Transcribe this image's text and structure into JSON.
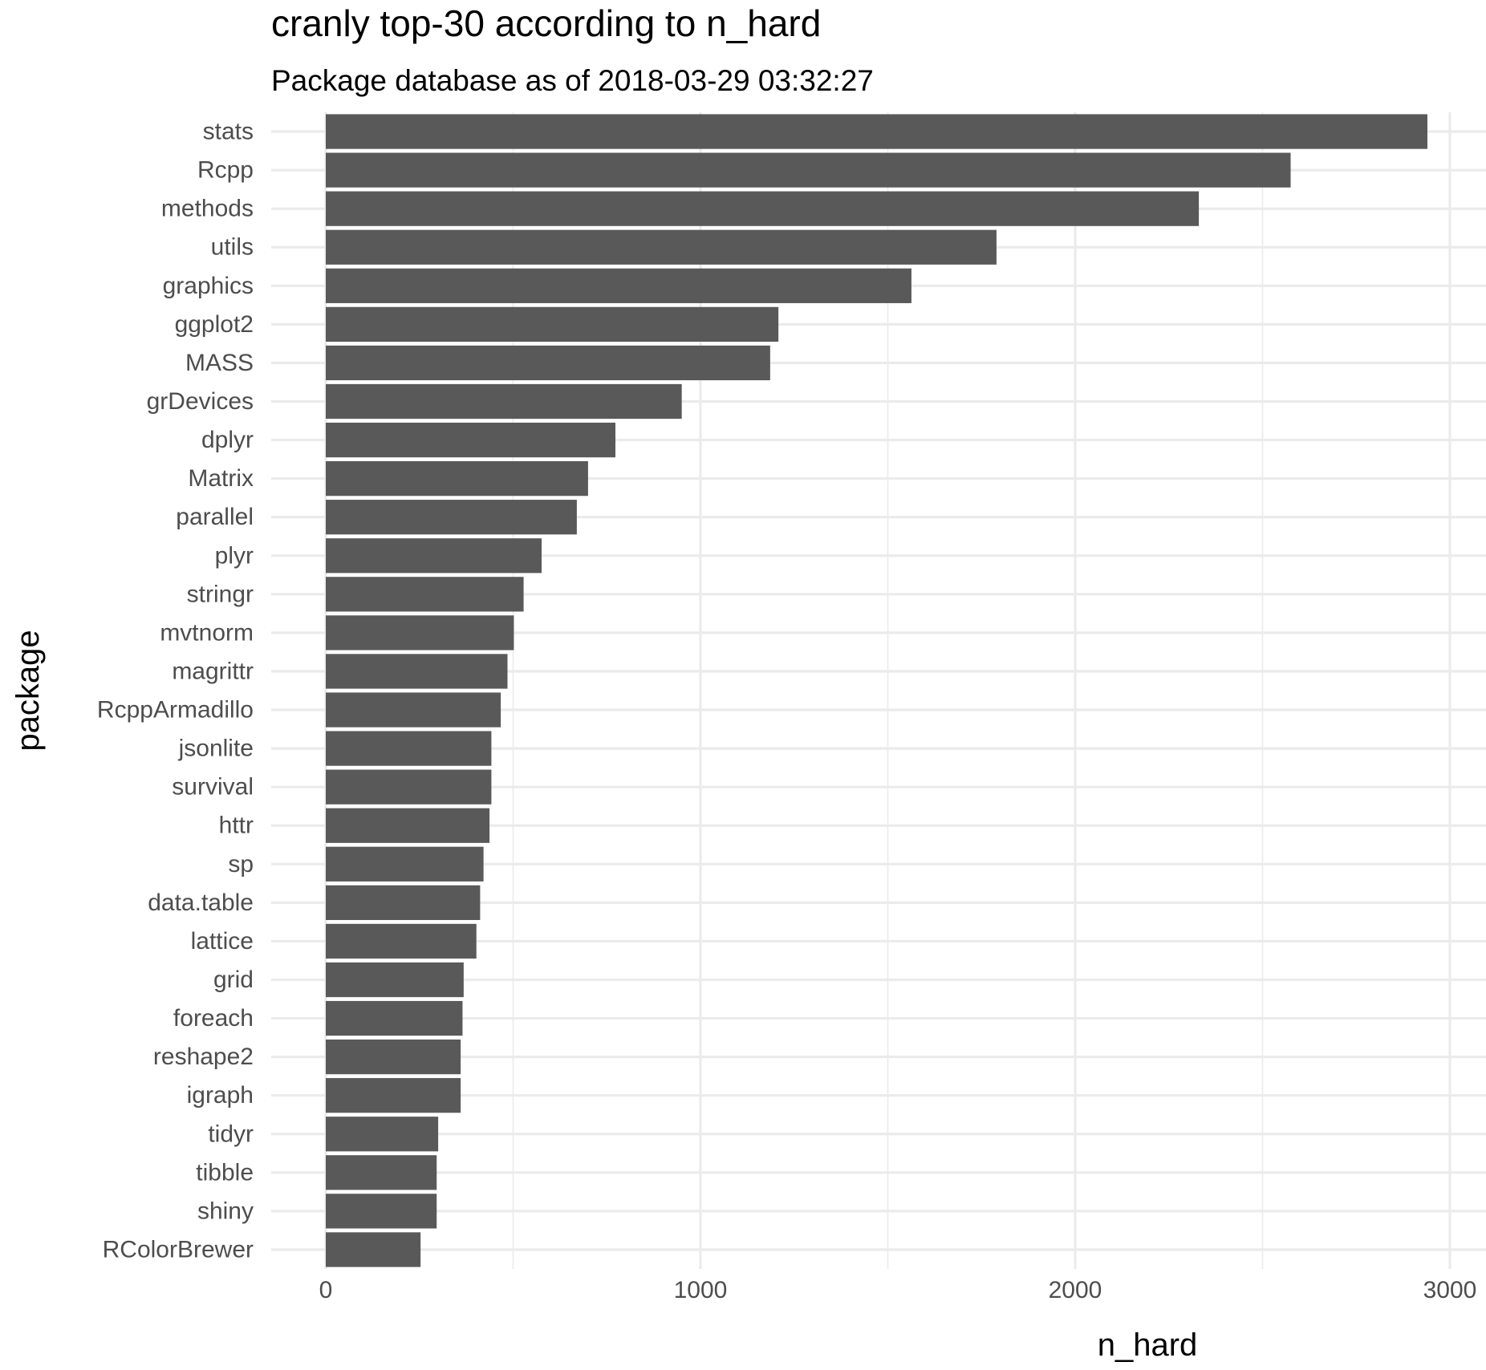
{
  "chart_data": {
    "type": "bar",
    "orientation": "horizontal",
    "title": "cranly top-30 according to n_hard",
    "subtitle": "Package database as of 2018-03-29 03:32:27",
    "xlabel": "n_hard",
    "ylabel": "package",
    "xlim": [
      0,
      3000
    ],
    "x_ticks": [
      "0",
      "1000",
      "2000",
      "3000"
    ],
    "x_tick_values": [
      0,
      1000,
      2000,
      3000
    ],
    "grid": true,
    "categories": [
      "stats",
      "Rcpp",
      "methods",
      "utils",
      "graphics",
      "ggplot2",
      "MASS",
      "grDevices",
      "dplyr",
      "Matrix",
      "parallel",
      "plyr",
      "stringr",
      "mvtnorm",
      "magrittr",
      "RcppArmadillo",
      "jsonlite",
      "survival",
      "httr",
      "sp",
      "data.table",
      "lattice",
      "grid",
      "foreach",
      "reshape2",
      "igraph",
      "tidyr",
      "tibble",
      "shiny",
      "RColorBrewer"
    ],
    "values": [
      2940,
      2575,
      2330,
      1790,
      1563,
      1208,
      1186,
      950,
      773,
      700,
      670,
      576,
      528,
      502,
      485,
      467,
      442,
      442,
      437,
      421,
      412,
      402,
      368,
      365,
      360,
      360,
      300,
      296,
      296,
      253
    ],
    "bar_color": "#595959",
    "grid_color": "#ebebeb",
    "text_color": "#4d4d4d"
  }
}
